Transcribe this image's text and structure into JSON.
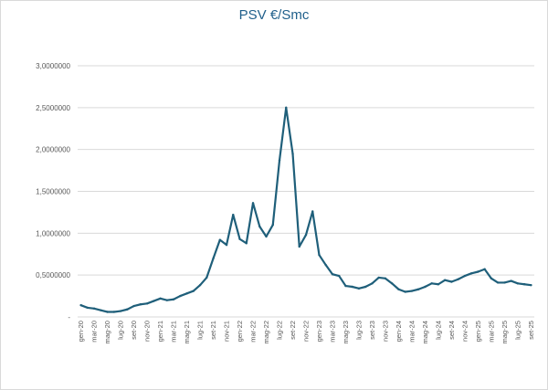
{
  "chart_data": {
    "type": "line",
    "title": "PSV €/Smc",
    "xlabel": "",
    "ylabel": "",
    "ylim": [
      0,
      3
    ],
    "yticks": [
      0,
      0.5,
      1,
      1.5,
      2,
      2.5,
      3
    ],
    "ytick_labels": [
      "-",
      "0,5000000",
      "1,0000000",
      "1,5000000",
      "2,0000000",
      "2,5000000",
      "3,0000000"
    ],
    "grid": true,
    "legend": "none",
    "line_color": "#1f5f7a",
    "x": [
      "gen-20",
      "feb-20",
      "mar-20",
      "apr-20",
      "mag-20",
      "giu-20",
      "lug-20",
      "ago-20",
      "set-20",
      "ott-20",
      "nov-20",
      "dic-20",
      "gen-21",
      "feb-21",
      "mar-21",
      "apr-21",
      "mag-21",
      "giu-21",
      "lug-21",
      "ago-21",
      "set-21",
      "ott-21",
      "nov-21",
      "dic-21",
      "gen-22",
      "feb-22",
      "mar-22",
      "apr-22",
      "mag-22",
      "giu-22",
      "lug-22",
      "ago-22",
      "set-22",
      "ott-22",
      "nov-22",
      "dic-22",
      "gen-23",
      "feb-23",
      "mar-23",
      "apr-23",
      "mag-23",
      "giu-23",
      "lug-23",
      "ago-23",
      "set-23",
      "ott-23",
      "nov-23",
      "dic-23",
      "gen-24",
      "feb-24",
      "mar-24",
      "apr-24",
      "mag-24",
      "giu-24",
      "lug-24",
      "ago-24",
      "set-24",
      "ott-24",
      "nov-24",
      "dic-24",
      "gen-25",
      "feb-25",
      "mar-25",
      "apr-25",
      "mag-25",
      "giu-25",
      "lug-25",
      "ago-25",
      "set-25"
    ],
    "x_tick_labels": [
      "gen-20",
      "mar-20",
      "mag-20",
      "lug-20",
      "set-20",
      "nov-20",
      "gen-21",
      "mar-21",
      "mag-21",
      "lug-21",
      "set-21",
      "nov-21",
      "gen-22",
      "mar-22",
      "mag-22",
      "lug-22",
      "set-22",
      "nov-22",
      "gen-23",
      "mar-23",
      "mag-23",
      "lug-23",
      "set-23",
      "nov-23",
      "gen-24",
      "mar-24",
      "mag-24",
      "lug-24",
      "set-24",
      "nov-24",
      "gen-25",
      "mar-25",
      "mag-25",
      "lug-25",
      "set-25"
    ],
    "values": [
      0.14,
      0.11,
      0.1,
      0.08,
      0.06,
      0.06,
      0.07,
      0.09,
      0.13,
      0.15,
      0.16,
      0.19,
      0.22,
      0.2,
      0.21,
      0.25,
      0.28,
      0.31,
      0.38,
      0.47,
      0.7,
      0.92,
      0.86,
      1.22,
      0.93,
      0.88,
      1.36,
      1.08,
      0.96,
      1.1,
      1.87,
      2.5,
      1.95,
      0.84,
      0.98,
      1.26,
      0.74,
      0.62,
      0.51,
      0.49,
      0.37,
      0.36,
      0.34,
      0.36,
      0.4,
      0.47,
      0.46,
      0.4,
      0.33,
      0.3,
      0.31,
      0.33,
      0.36,
      0.4,
      0.39,
      0.44,
      0.42,
      0.45,
      0.49,
      0.52,
      0.54,
      0.57,
      0.46,
      0.41,
      0.41,
      0.43,
      0.4,
      0.39,
      0.38
    ]
  }
}
